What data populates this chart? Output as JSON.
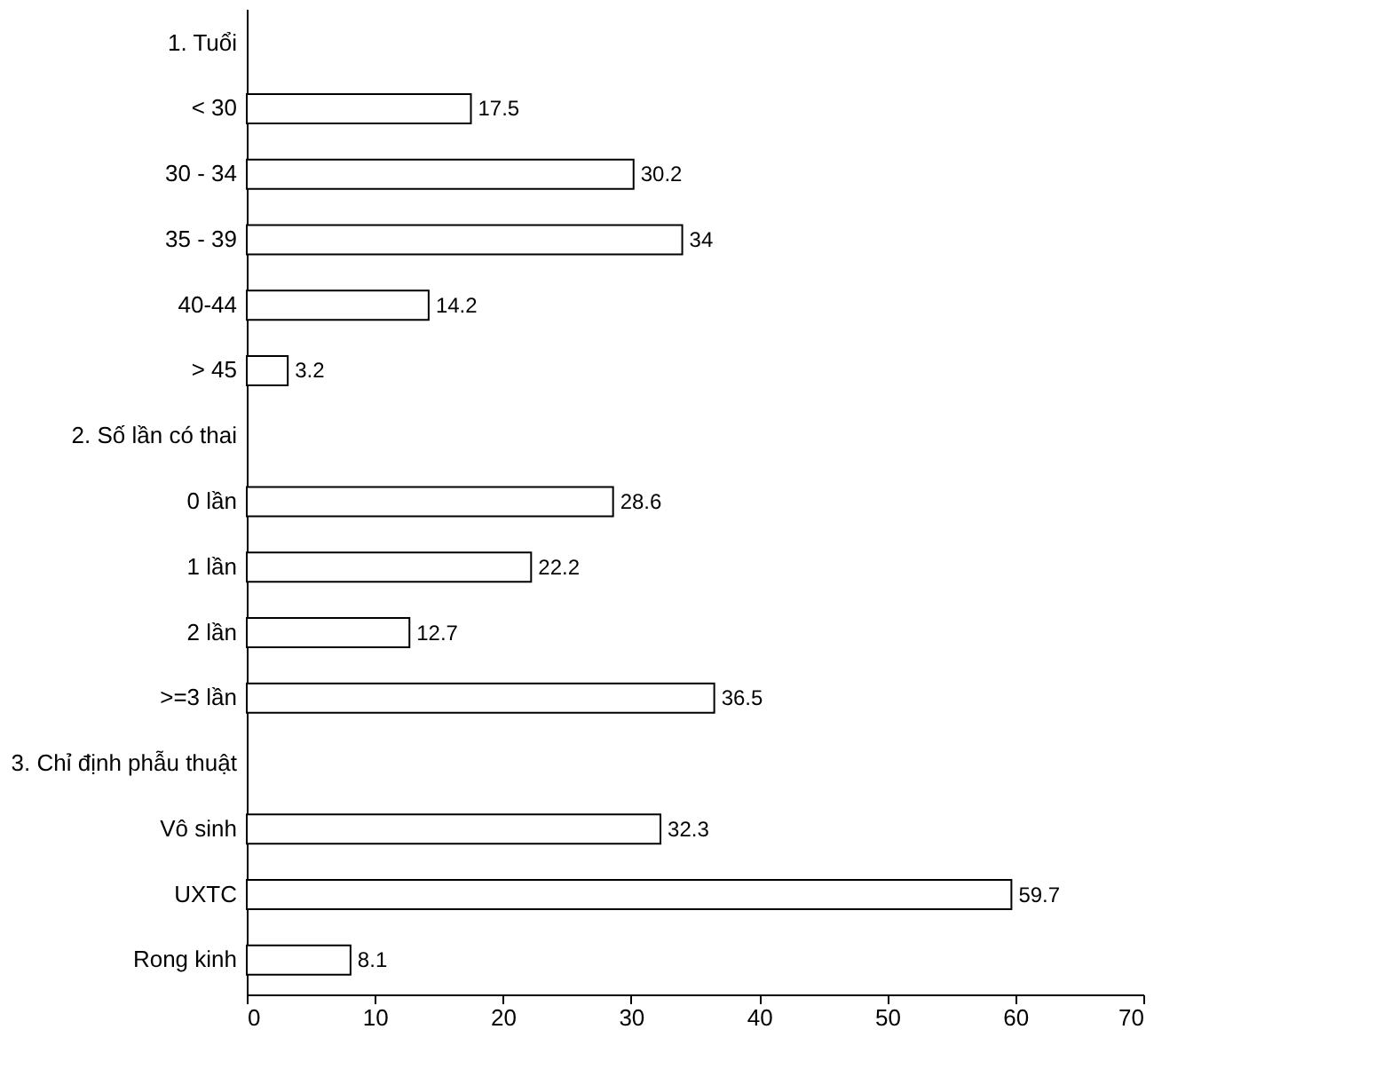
{
  "chart_data": {
    "type": "bar",
    "orientation": "horizontal",
    "categories": [
      "1. Tuổi",
      "< 30",
      "30 - 34",
      "35 - 39",
      "40-44",
      "> 45",
      "2. Số lần có thai",
      "0 lần",
      "1 lần",
      "2 lần",
      ">=3 lần",
      "3. Chỉ định phẫu thuật",
      "Vô sinh",
      "UXTC",
      "Rong kinh"
    ],
    "values": [
      null,
      17.5,
      30.2,
      34,
      14.2,
      3.2,
      null,
      28.6,
      22.2,
      12.7,
      36.5,
      null,
      32.3,
      59.7,
      8.1
    ],
    "color": "#ffffff",
    "xlim": [
      0,
      70
    ],
    "xticks": [
      0,
      10,
      20,
      30,
      40,
      50,
      60,
      70
    ],
    "data_labels": true,
    "grid": false
  }
}
